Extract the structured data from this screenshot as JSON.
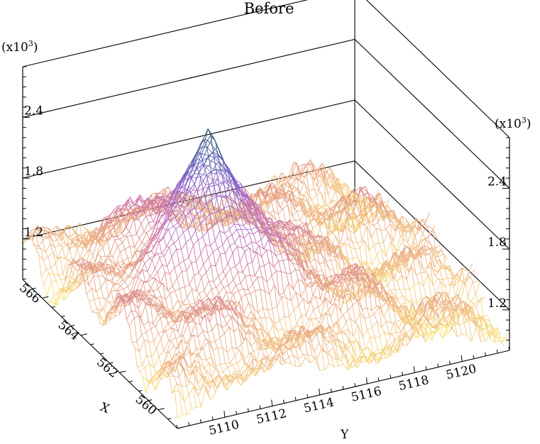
{
  "title": "Before",
  "chart_data": {
    "type": "surface",
    "title": "Before",
    "xlabel": "X",
    "ylabel": "Y",
    "z_multiplier": "(x10",
    "z_multiplier_exp": "3",
    "z_multiplier_close": ")",
    "x_ticks": [
      "560",
      "562",
      "564",
      "566"
    ],
    "y_ticks": [
      "5110",
      "5112",
      "5114",
      "5116",
      "5118",
      "5120"
    ],
    "z_ticks": [
      "1.2",
      "1.8",
      "2.4"
    ],
    "xlim": [
      559,
      567
    ],
    "ylim": [
      5108,
      5122
    ],
    "zlim": [
      0.8,
      2.9
    ],
    "peak": {
      "x": 563.5,
      "y": 5113,
      "z": 2.7
    },
    "baseline_z": 1.05,
    "colormap": [
      "#f7e27c",
      "#f2c087",
      "#e39b87",
      "#cf78a8",
      "#a86ad0",
      "#6f63c0",
      "#3f5d99",
      "#234b4e"
    ]
  }
}
